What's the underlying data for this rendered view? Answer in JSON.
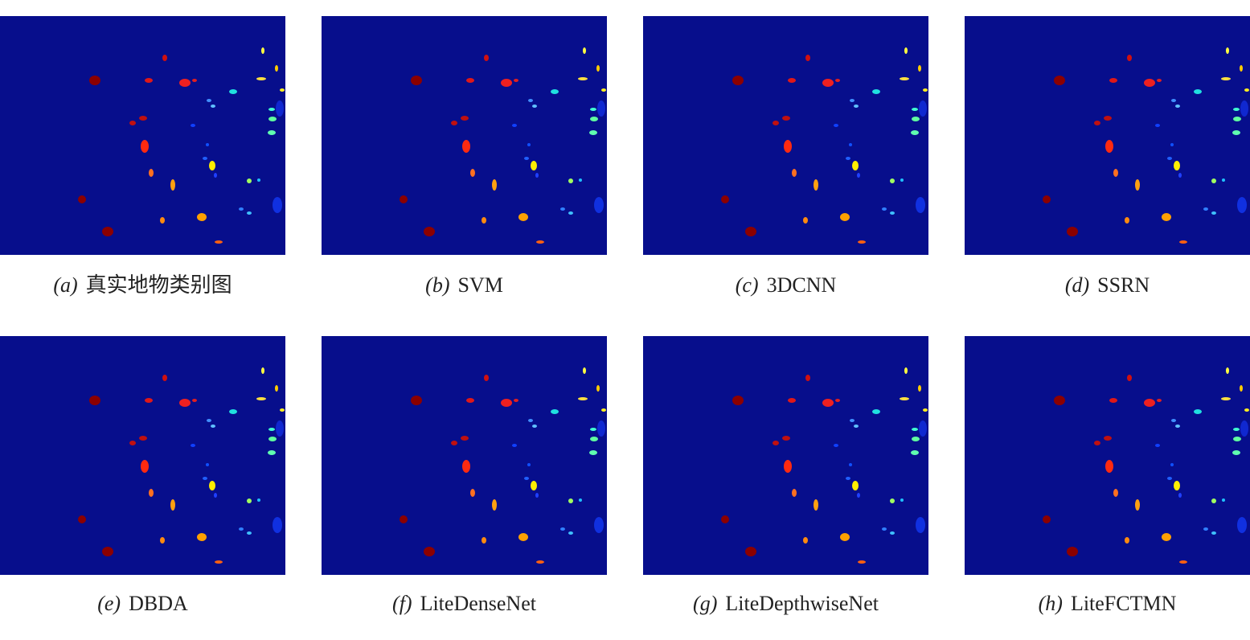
{
  "panels": [
    {
      "label": "(a)",
      "caption": "真实地物类别图"
    },
    {
      "label": "(b)",
      "caption": "SVM"
    },
    {
      "label": "(c)",
      "caption": "3DCNN"
    },
    {
      "label": "(d)",
      "caption": "SSRN"
    },
    {
      "label": "(e)",
      "caption": "DBDA"
    },
    {
      "label": "(f)",
      "caption": "LiteDenseNet"
    },
    {
      "label": "(g)",
      "caption": "LiteDepthwiseNet"
    },
    {
      "label": "(h)",
      "caption": "LiteFCTMN"
    }
  ]
}
